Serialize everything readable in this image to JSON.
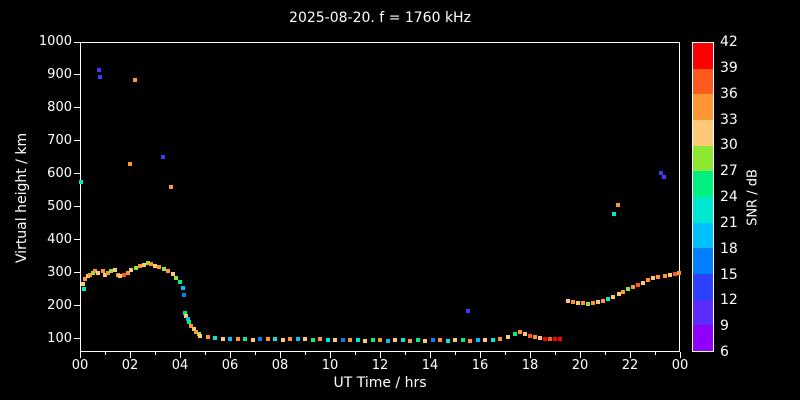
{
  "chart": {
    "title": "2025-08-20. f = 1760 kHz",
    "xlabel": "UT Time / hrs",
    "ylabel": "Virtual height / km",
    "x_ticks": [
      "00",
      "02",
      "04",
      "06",
      "08",
      "10",
      "12",
      "14",
      "16",
      "18",
      "20",
      "22",
      "00"
    ],
    "y_ticks": [
      1000,
      900,
      800,
      700,
      600,
      500,
      400,
      300,
      200,
      100
    ],
    "colorbar": {
      "label": "SNR / dB",
      "ticks": [
        42,
        39,
        36,
        33,
        30,
        27,
        24,
        21,
        18,
        15,
        12,
        9,
        6
      ],
      "min": 6,
      "max": 42,
      "colors_bottom_to_top": [
        "#9000ff",
        "#5c2bff",
        "#2e40ff",
        "#0080ff",
        "#00c0ff",
        "#00e8d0",
        "#00f080",
        "#8ce830",
        "#ffc878",
        "#ff9632",
        "#ff5a1e",
        "#ff0000"
      ]
    }
  },
  "chart_data": {
    "type": "scatter",
    "title": "2025-08-20. f = 1760 kHz",
    "xlabel": "UT Time / hrs",
    "ylabel": "Virtual height / km",
    "color_label": "SNR / dB",
    "xlim": [
      0,
      24
    ],
    "ylim": [
      60,
      1000
    ],
    "point_format": "[ut_hours, virtual_height_km, snr_db]",
    "points": [
      [
        0.05,
        575,
        21
      ],
      [
        0.1,
        265,
        30
      ],
      [
        0.15,
        250,
        21
      ],
      [
        0.2,
        280,
        33
      ],
      [
        0.3,
        290,
        30
      ],
      [
        0.4,
        295,
        33
      ],
      [
        0.5,
        300,
        27
      ],
      [
        0.6,
        305,
        33
      ],
      [
        0.7,
        300,
        30
      ],
      [
        0.75,
        915,
        9
      ],
      [
        0.8,
        895,
        12
      ],
      [
        0.9,
        305,
        33
      ],
      [
        1.0,
        295,
        30
      ],
      [
        1.1,
        300,
        33
      ],
      [
        1.25,
        305,
        27
      ],
      [
        1.4,
        310,
        30
      ],
      [
        1.5,
        295,
        33
      ],
      [
        1.6,
        290,
        30
      ],
      [
        1.75,
        292,
        36
      ],
      [
        1.9,
        300,
        33
      ],
      [
        2.0,
        630,
        33
      ],
      [
        2.05,
        310,
        30
      ],
      [
        2.2,
        885,
        33
      ],
      [
        2.25,
        315,
        27
      ],
      [
        2.4,
        320,
        33
      ],
      [
        2.55,
        325,
        30
      ],
      [
        2.7,
        330,
        27
      ],
      [
        2.85,
        328,
        33
      ],
      [
        3.0,
        322,
        30
      ],
      [
        3.15,
        318,
        33
      ],
      [
        3.3,
        650,
        12
      ],
      [
        3.35,
        312,
        27
      ],
      [
        3.5,
        305,
        33
      ],
      [
        3.65,
        560,
        33
      ],
      [
        3.7,
        298,
        30
      ],
      [
        3.85,
        285,
        27
      ],
      [
        4.0,
        272,
        24
      ],
      [
        4.1,
        255,
        18
      ],
      [
        4.15,
        232,
        15
      ],
      [
        4.2,
        178,
        24
      ],
      [
        4.25,
        168,
        30
      ],
      [
        4.3,
        160,
        18
      ],
      [
        4.35,
        150,
        24
      ],
      [
        4.45,
        140,
        33
      ],
      [
        4.55,
        130,
        30
      ],
      [
        4.65,
        122,
        33
      ],
      [
        4.75,
        115,
        27
      ],
      [
        4.8,
        110,
        30
      ],
      [
        5.1,
        105,
        33
      ],
      [
        5.4,
        103,
        21
      ],
      [
        5.7,
        100,
        30
      ],
      [
        6.0,
        100,
        18
      ],
      [
        6.3,
        98,
        33
      ],
      [
        6.6,
        100,
        24
      ],
      [
        6.9,
        97,
        30
      ],
      [
        7.2,
        100,
        15
      ],
      [
        7.5,
        98,
        33
      ],
      [
        7.8,
        100,
        21
      ],
      [
        8.1,
        97,
        30
      ],
      [
        8.4,
        100,
        33
      ],
      [
        8.7,
        98,
        18
      ],
      [
        9.0,
        100,
        30
      ],
      [
        9.3,
        97,
        24
      ],
      [
        9.6,
        100,
        33
      ],
      [
        9.9,
        95,
        21
      ],
      [
        10.2,
        97,
        30
      ],
      [
        10.5,
        95,
        15
      ],
      [
        10.8,
        97,
        33
      ],
      [
        11.1,
        95,
        21
      ],
      [
        11.4,
        93,
        30
      ],
      [
        11.7,
        95,
        24
      ],
      [
        12.0,
        95,
        33
      ],
      [
        12.3,
        93,
        18
      ],
      [
        12.6,
        95,
        30
      ],
      [
        12.9,
        95,
        21
      ],
      [
        13.2,
        93,
        33
      ],
      [
        13.5,
        95,
        24
      ],
      [
        13.8,
        93,
        30
      ],
      [
        14.1,
        95,
        15
      ],
      [
        14.4,
        95,
        33
      ],
      [
        14.7,
        93,
        21
      ],
      [
        15.0,
        95,
        30
      ],
      [
        15.3,
        95,
        24
      ],
      [
        15.5,
        185,
        12
      ],
      [
        15.6,
        93,
        33
      ],
      [
        15.9,
        95,
        18
      ],
      [
        16.2,
        95,
        30
      ],
      [
        16.5,
        97,
        21
      ],
      [
        16.8,
        100,
        33
      ],
      [
        17.1,
        105,
        30
      ],
      [
        17.4,
        115,
        24
      ],
      [
        17.6,
        120,
        33
      ],
      [
        17.8,
        115,
        30
      ],
      [
        18.0,
        110,
        36
      ],
      [
        18.2,
        105,
        33
      ],
      [
        18.4,
        102,
        30
      ],
      [
        18.6,
        100,
        39
      ],
      [
        18.8,
        100,
        36
      ],
      [
        19.0,
        100,
        39
      ],
      [
        19.2,
        100,
        42
      ],
      [
        19.5,
        215,
        30
      ],
      [
        19.7,
        212,
        33
      ],
      [
        19.9,
        210,
        30
      ],
      [
        20.1,
        208,
        33
      ],
      [
        20.3,
        207,
        27
      ],
      [
        20.5,
        208,
        33
      ],
      [
        20.7,
        212,
        30
      ],
      [
        20.9,
        216,
        33
      ],
      [
        21.1,
        222,
        21
      ],
      [
        21.3,
        228,
        30
      ],
      [
        21.35,
        478,
        21
      ],
      [
        21.5,
        505,
        33
      ],
      [
        21.55,
        235,
        30
      ],
      [
        21.7,
        242,
        33
      ],
      [
        21.9,
        250,
        27
      ],
      [
        22.1,
        258,
        33
      ],
      [
        22.3,
        264,
        36
      ],
      [
        22.5,
        270,
        30
      ],
      [
        22.7,
        278,
        33
      ],
      [
        22.9,
        283,
        30
      ],
      [
        23.1,
        287,
        33
      ],
      [
        23.25,
        602,
        12
      ],
      [
        23.35,
        590,
        9
      ],
      [
        23.4,
        290,
        33
      ],
      [
        23.6,
        293,
        30
      ],
      [
        23.8,
        296,
        36
      ],
      [
        23.95,
        300,
        33
      ]
    ]
  }
}
